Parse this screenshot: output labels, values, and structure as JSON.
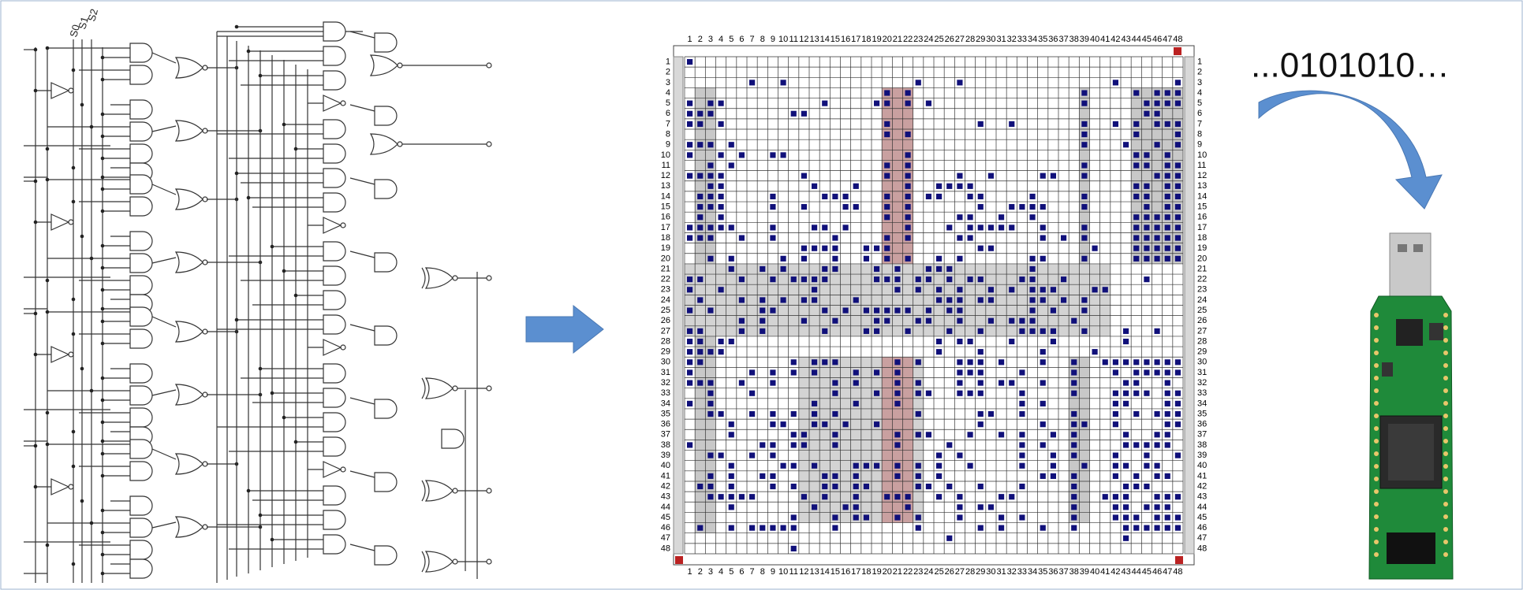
{
  "circuit": {
    "select_labels": [
      "S0",
      "S1",
      "S2"
    ]
  },
  "floorplan": {
    "column_labels": [
      1,
      2,
      3,
      4,
      5,
      6,
      7,
      8,
      9,
      10,
      11,
      12,
      13,
      14,
      15,
      16,
      17,
      18,
      19,
      20,
      21,
      22,
      23,
      24,
      25,
      26,
      27,
      28,
      29,
      30,
      31,
      32,
      33,
      34,
      35,
      36,
      37,
      38,
      39,
      40,
      41,
      42,
      43,
      44,
      45,
      46,
      47,
      48
    ],
    "row_labels": [
      1,
      2,
      3,
      4,
      5,
      6,
      7,
      8,
      9,
      10,
      11,
      12,
      13,
      14,
      15,
      16,
      17,
      18,
      19,
      20,
      21,
      22,
      23,
      24,
      25,
      26,
      27,
      28,
      29,
      30,
      31,
      32,
      33,
      34,
      35,
      36,
      37,
      38,
      39,
      40,
      41,
      42,
      43,
      44,
      45,
      46,
      47,
      48
    ]
  },
  "bitstream": "...0101010…"
}
